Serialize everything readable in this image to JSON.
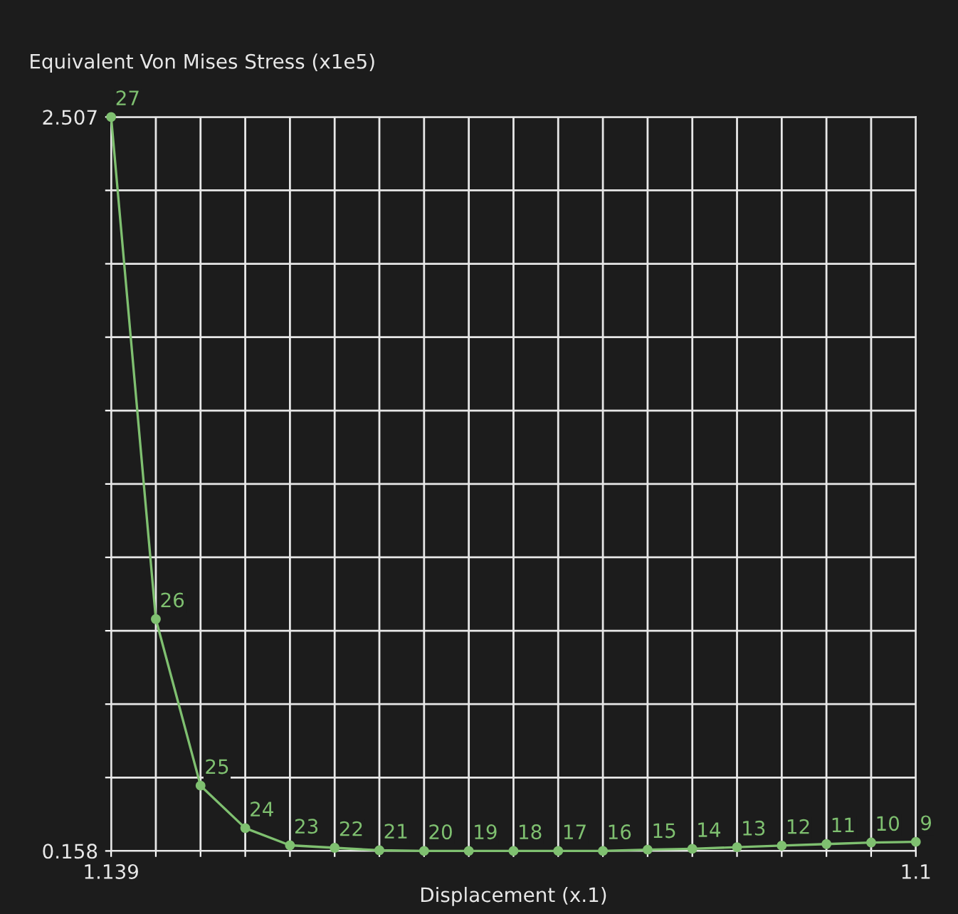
{
  "chart_data": {
    "type": "line",
    "ylabel": "Equivalent Von Mises Stress (x1e5)",
    "xlabel": "Displacement (x.1)",
    "categories": [
      "1.139",
      null,
      null,
      null,
      null,
      null,
      null,
      null,
      null,
      null,
      null,
      null,
      null,
      null,
      null,
      null,
      null,
      null,
      "1.1"
    ],
    "series": [
      {
        "color": "#7fc070",
        "values": [
          2.507,
          0.9,
          0.367,
          0.231,
          0.176,
          0.168,
          0.16,
          0.158,
          0.158,
          0.158,
          0.158,
          0.158,
          0.162,
          0.165,
          0.17,
          0.175,
          0.18,
          0.185,
          0.187
        ]
      }
    ],
    "annotations": [
      "27",
      "26",
      "25",
      "24",
      "23",
      "22",
      "21",
      "20",
      "19",
      "18",
      "17",
      "16",
      "15",
      "14",
      "13",
      "12",
      "11",
      "10",
      "9"
    ],
    "ylim": [
      0.158,
      2.507
    ],
    "yticks": [
      0.158,
      {
        "value": 0.3929,
        "label": null
      },
      {
        "value": 0.6278,
        "label": null
      },
      {
        "value": 0.8627,
        "label": null
      },
      {
        "value": 1.0976,
        "label": null
      },
      {
        "value": 1.3325,
        "label": null
      },
      {
        "value": 1.5674,
        "label": null
      },
      {
        "value": 1.8023,
        "label": null
      },
      {
        "value": 2.0372,
        "label": null
      },
      {
        "value": 2.2721,
        "label": null
      },
      2.507
    ],
    "grid": true,
    "marker": "circle",
    "line_style": "solid"
  }
}
